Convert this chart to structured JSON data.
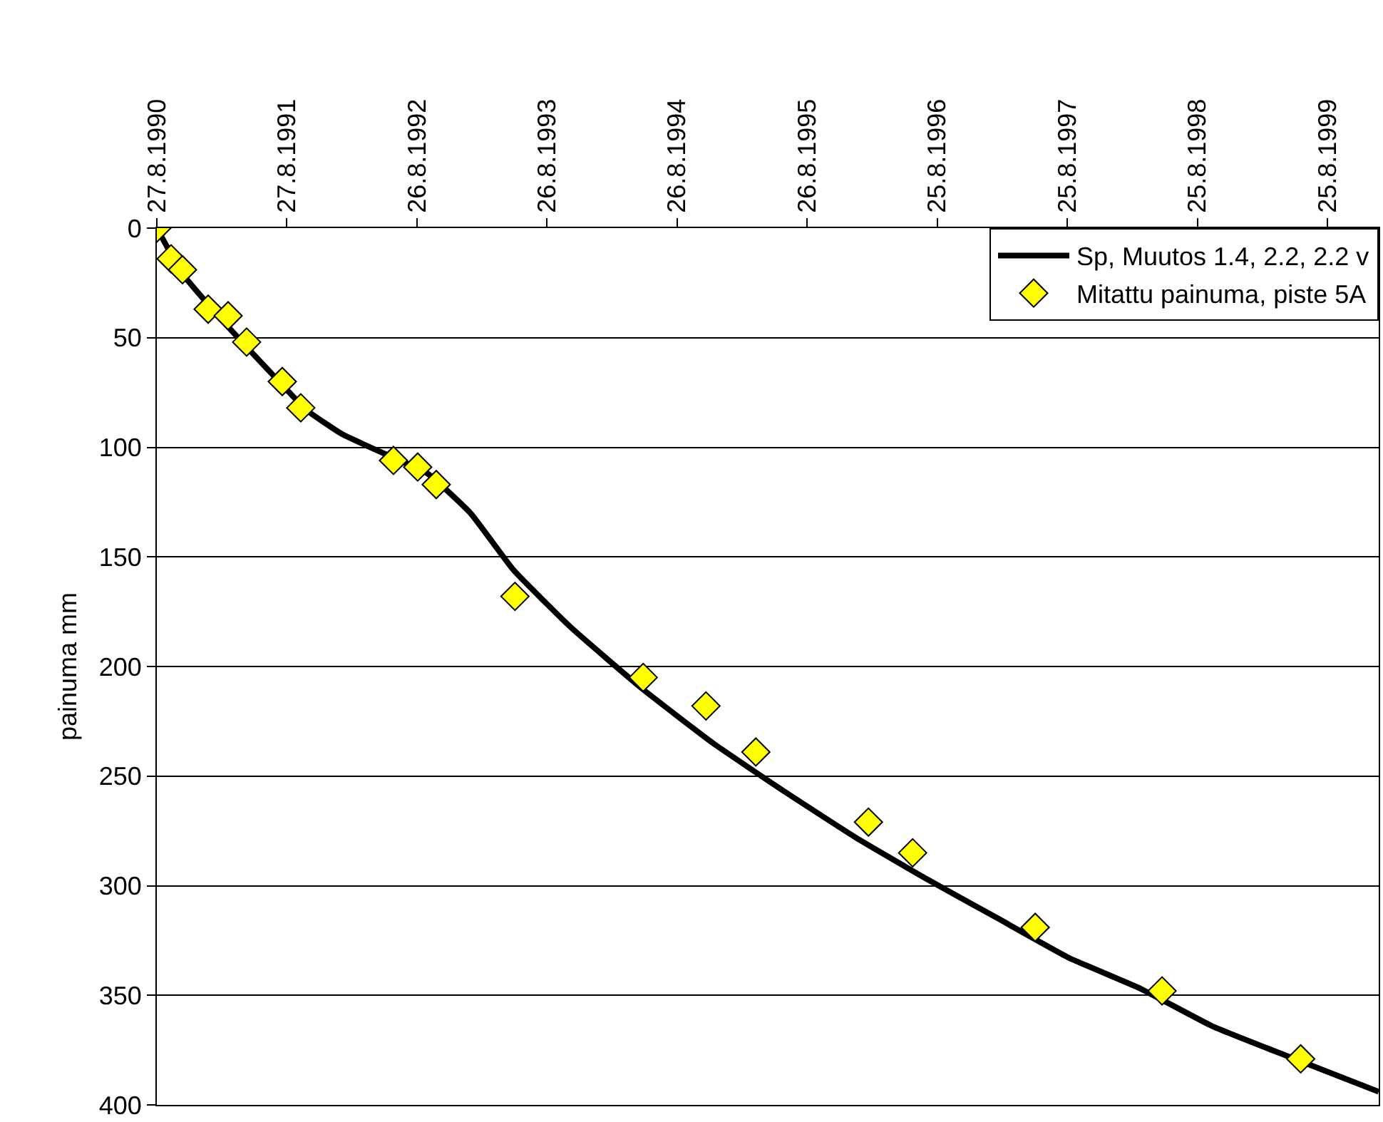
{
  "chart_data": {
    "type": "scatter",
    "ylabel": "painuma mm",
    "xlim": [
      "1990-08-27",
      "2000-01-16"
    ],
    "ylim": [
      400,
      0
    ],
    "xticks": [
      {
        "value": "1990-08-27",
        "label": "27.8.1990"
      },
      {
        "value": "1991-08-27",
        "label": "27.8.1991"
      },
      {
        "value": "1992-08-26",
        "label": "26.8.1992"
      },
      {
        "value": "1993-08-26",
        "label": "26.8.1993"
      },
      {
        "value": "1994-08-26",
        "label": "26.8.1994"
      },
      {
        "value": "1995-08-26",
        "label": "26.8.1995"
      },
      {
        "value": "1996-08-25",
        "label": "25.8.1996"
      },
      {
        "value": "1997-08-25",
        "label": "25.8.1997"
      },
      {
        "value": "1998-08-25",
        "label": "25.8.1998"
      },
      {
        "value": "1999-08-25",
        "label": "25.8.1999"
      }
    ],
    "yticks": [
      0,
      50,
      100,
      150,
      200,
      250,
      300,
      350,
      400
    ],
    "grid": "y",
    "legend": "top right",
    "line_style": "solid",
    "series": [
      {
        "name": "Sp, Muutos 1.4, 2.2, 2.2 v",
        "type": "line",
        "marker": "none",
        "color": "#000000",
        "x": [
          "1990-08-27",
          "1990-11-08",
          "1991-03-15",
          "1991-07-13",
          "1991-10-21",
          "1992-01-29",
          "1992-05-28",
          "1992-09-25",
          "1993-01-23",
          "1993-05-24",
          "1993-10-31",
          "1994-05-19",
          "1994-12-05",
          "1995-06-23",
          "1996-01-09",
          "1996-07-27",
          "1997-02-12",
          "1997-08-31",
          "1998-03-19",
          "1998-10-05",
          "1999-04-23",
          "2000-01-16"
        ],
        "values": [
          0,
          21,
          45,
          66,
          83,
          94,
          103,
          112,
          130,
          156,
          182,
          210,
          235,
          257,
          278,
          297,
          315,
          333,
          347,
          364,
          377,
          394
        ]
      },
      {
        "name": "Mitattu painuma, piste 5A",
        "marker": "diamond",
        "color": "#ffff00",
        "x": [
          "1990-08-27",
          "1990-10-06",
          "1990-11-07",
          "1991-01-18",
          "1991-03-15",
          "1991-05-06",
          "1991-08-14",
          "1991-10-05",
          "1992-06-21",
          "1992-08-28",
          "1992-10-19",
          "1993-05-28",
          "1994-05-23",
          "1994-11-15",
          "1995-04-04",
          "1996-02-14",
          "1996-06-17",
          "1997-05-27",
          "1998-05-18",
          "1999-06-11"
        ],
        "values": [
          0,
          14,
          19,
          37,
          40,
          52,
          70,
          82,
          106,
          109,
          117,
          168,
          205,
          218,
          239,
          271,
          285,
          319,
          348,
          379
        ]
      }
    ]
  }
}
